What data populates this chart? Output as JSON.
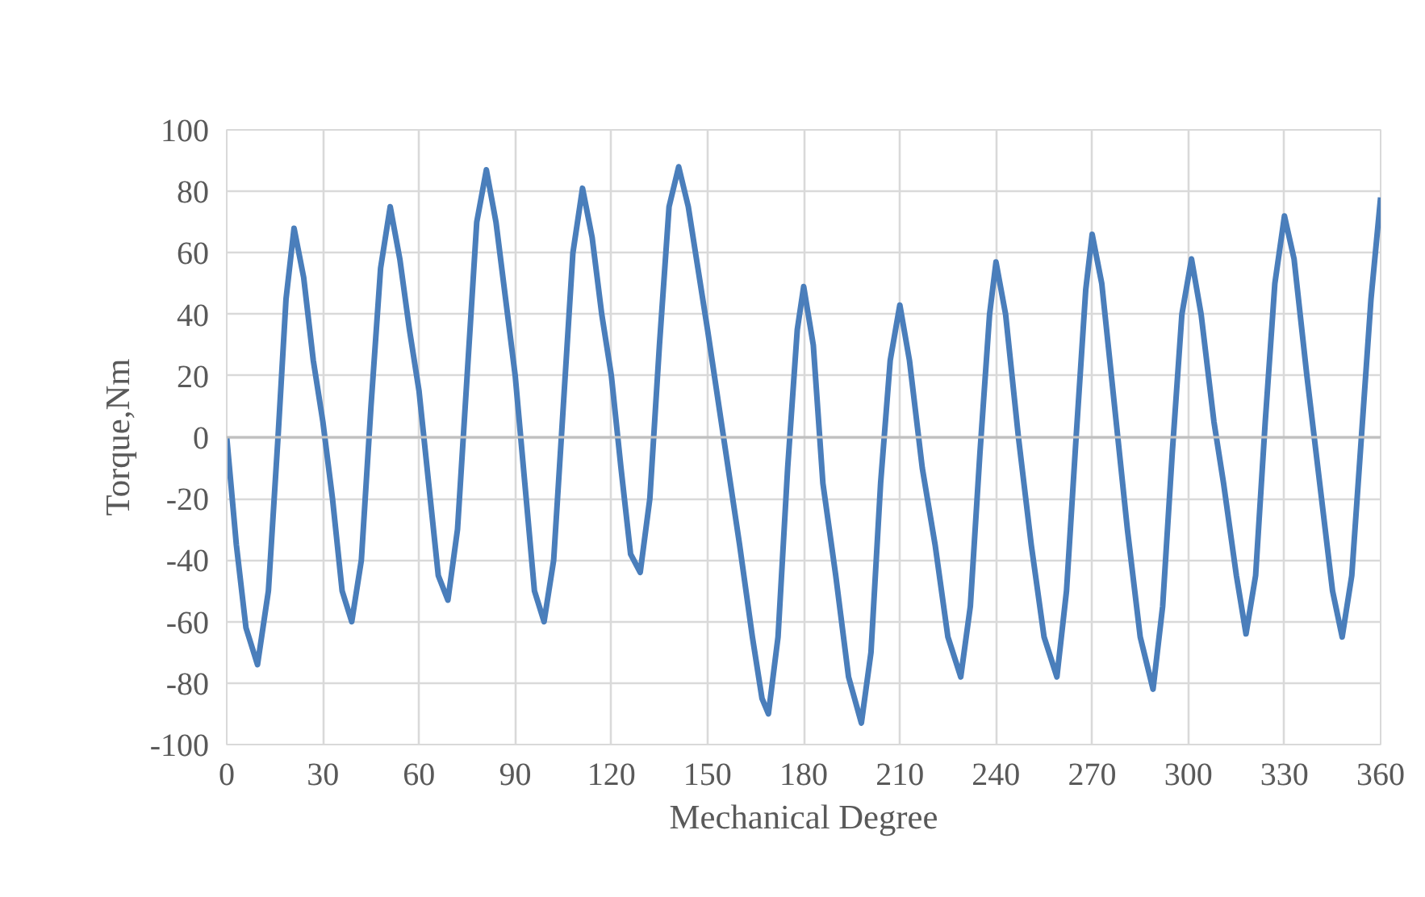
{
  "chart_data": {
    "type": "line",
    "xlabel": "Mechanical Degree",
    "ylabel": "Torque,Nm",
    "xlim": [
      0,
      360
    ],
    "xticks": [
      0,
      30,
      60,
      90,
      120,
      150,
      180,
      210,
      240,
      270,
      300,
      330,
      360
    ],
    "ylim": [
      -100,
      100
    ],
    "yticks": [
      -100,
      -80,
      -60,
      -40,
      -20,
      0,
      20,
      40,
      60,
      80,
      100
    ],
    "grid": true,
    "marker": "none",
    "line_style": "solid",
    "series": [
      {
        "color": "#4a7ebb",
        "x": [
          0,
          3,
          6,
          9.6,
          13,
          16,
          18.5,
          21,
          24,
          27,
          30,
          33,
          36,
          39,
          42,
          45,
          48,
          51,
          54,
          57,
          60,
          63,
          66,
          69,
          72,
          75,
          78,
          81,
          84,
          87,
          90,
          93,
          96,
          99,
          102,
          105,
          108,
          111,
          114,
          117,
          120,
          123,
          126,
          129,
          132,
          135,
          138,
          141,
          144,
          147,
          150,
          155,
          160,
          164,
          167,
          169,
          172,
          175,
          178,
          180,
          183,
          186,
          190,
          194,
          198,
          201,
          204,
          207,
          210,
          213,
          217,
          221,
          225,
          229,
          232,
          235,
          238,
          240,
          243,
          247,
          251,
          255,
          259,
          262,
          265,
          268,
          270,
          273,
          277,
          281,
          285,
          289,
          292,
          295,
          298,
          301,
          304,
          308,
          311,
          315,
          318,
          321,
          324,
          327,
          330,
          333,
          337,
          341,
          345,
          348,
          351,
          354,
          357,
          360
        ],
        "values": [
          0,
          -35,
          -62,
          -74,
          -50,
          0,
          45,
          68,
          52,
          25,
          5,
          -20,
          -50,
          -60,
          -40,
          10,
          55,
          75,
          58,
          35,
          15,
          -15,
          -45,
          -53,
          -30,
          20,
          70,
          87,
          70,
          45,
          20,
          -15,
          -50,
          -60,
          -40,
          10,
          60,
          81,
          65,
          40,
          20,
          -10,
          -38,
          -44,
          -20,
          30,
          75,
          88,
          75,
          55,
          35,
          0,
          -35,
          -65,
          -85,
          -90,
          -65,
          -10,
          35,
          49,
          30,
          -15,
          -45,
          -78,
          -93,
          -70,
          -15,
          25,
          43,
          25,
          -10,
          -35,
          -65,
          -78,
          -55,
          -5,
          40,
          57,
          40,
          0,
          -35,
          -65,
          -78,
          -50,
          0,
          48,
          66,
          50,
          10,
          -30,
          -65,
          -82,
          -55,
          -5,
          40,
          58,
          40,
          5,
          -15,
          -45,
          -64,
          -45,
          5,
          50,
          72,
          58,
          20,
          -15,
          -50,
          -65,
          -45,
          0,
          45,
          78
        ]
      }
    ]
  }
}
